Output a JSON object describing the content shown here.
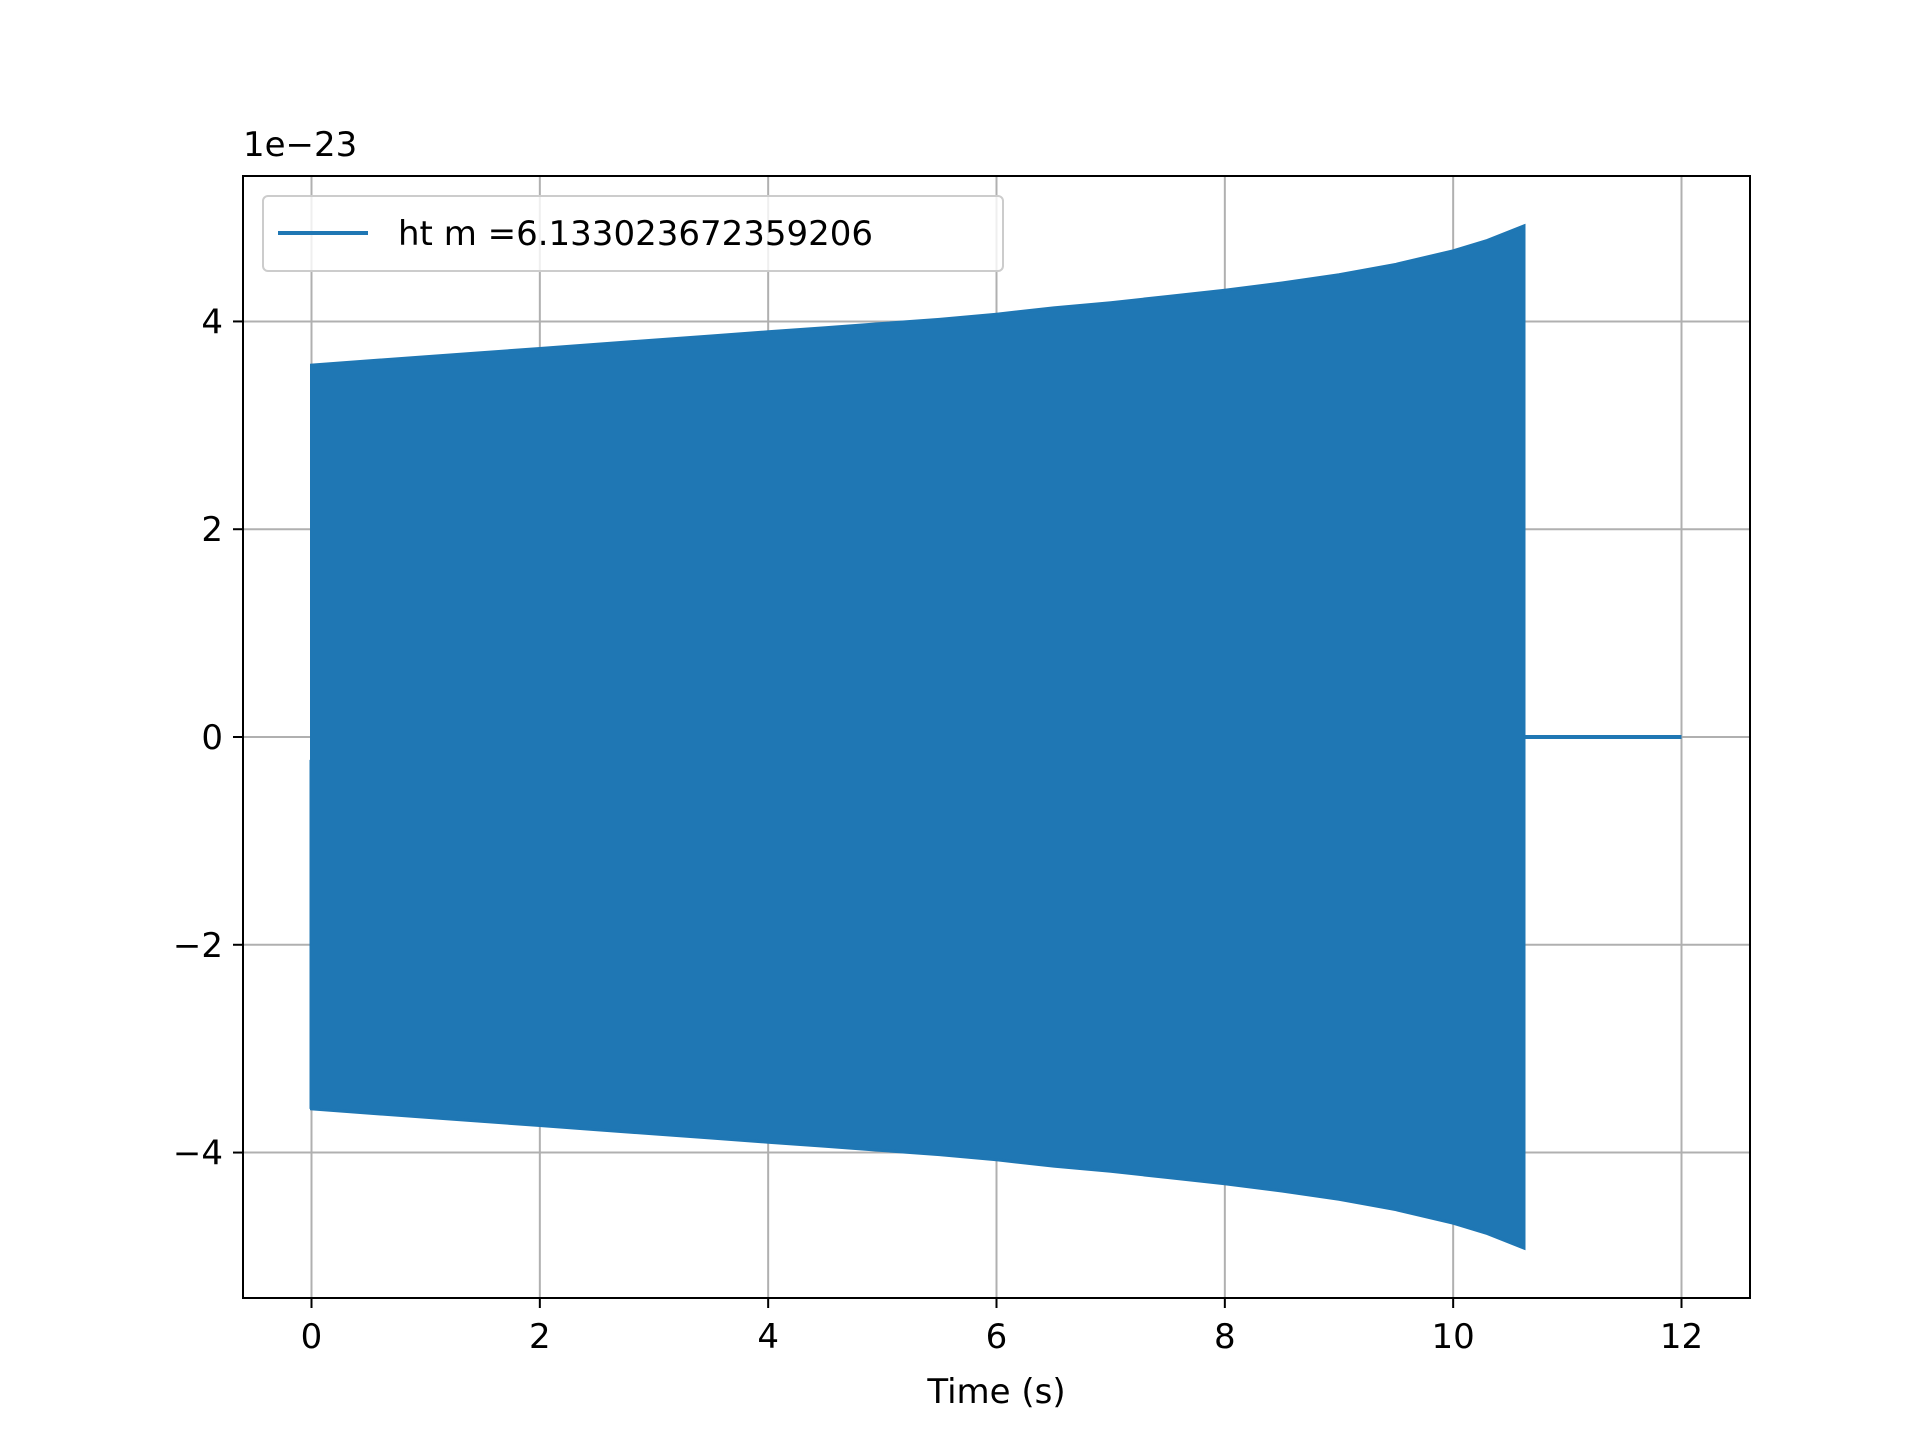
{
  "chart_data": {
    "type": "line",
    "title": "",
    "xlabel": "Time (s)",
    "ylabel": "",
    "y_offset_label": "1e−23",
    "xlim": [
      -0.6,
      12.6
    ],
    "ylim": [
      -5.4,
      5.4
    ],
    "x_ticks": [
      0,
      2,
      4,
      6,
      8,
      10,
      12
    ],
    "x_tick_labels": [
      "0",
      "2",
      "4",
      "6",
      "8",
      "10",
      "12"
    ],
    "y_ticks": [
      -4,
      -2,
      0,
      2,
      4
    ],
    "y_tick_labels": [
      "−4",
      "−2",
      "0",
      "2",
      "4"
    ],
    "grid": true,
    "legend_position": "top-left",
    "series": [
      {
        "name": "ht m =6.133023672359206",
        "color": "#1f77b4",
        "envelope_upper": {
          "x": [
            0.0,
            0.5,
            1.0,
            1.5,
            2.0,
            2.5,
            3.0,
            3.5,
            4.0,
            4.5,
            5.0,
            5.5,
            6.0,
            6.5,
            7.0,
            7.5,
            8.0,
            8.5,
            9.0,
            9.5,
            10.0,
            10.3,
            10.62
          ],
          "y": [
            3.58,
            3.62,
            3.66,
            3.7,
            3.74,
            3.78,
            3.82,
            3.86,
            3.9,
            3.94,
            3.98,
            4.02,
            4.07,
            4.13,
            4.18,
            4.24,
            4.3,
            4.37,
            4.45,
            4.55,
            4.68,
            4.78,
            4.92
          ]
        },
        "envelope_lower": {
          "x": [
            0.0,
            0.5,
            1.0,
            1.5,
            2.0,
            2.5,
            3.0,
            3.5,
            4.0,
            4.5,
            5.0,
            5.5,
            6.0,
            6.5,
            7.0,
            7.5,
            8.0,
            8.5,
            9.0,
            9.5,
            10.0,
            10.3,
            10.62
          ],
          "y": [
            -3.58,
            -3.62,
            -3.66,
            -3.7,
            -3.74,
            -3.78,
            -3.82,
            -3.86,
            -3.9,
            -3.94,
            -3.98,
            -4.02,
            -4.07,
            -4.13,
            -4.18,
            -4.24,
            -4.3,
            -4.37,
            -4.45,
            -4.55,
            -4.68,
            -4.78,
            -4.92
          ]
        },
        "signal_start_x": 0.0,
        "signal_end_x": 10.62,
        "tail": {
          "x": [
            10.62,
            12.0
          ],
          "y": [
            0,
            0
          ]
        }
      }
    ]
  }
}
